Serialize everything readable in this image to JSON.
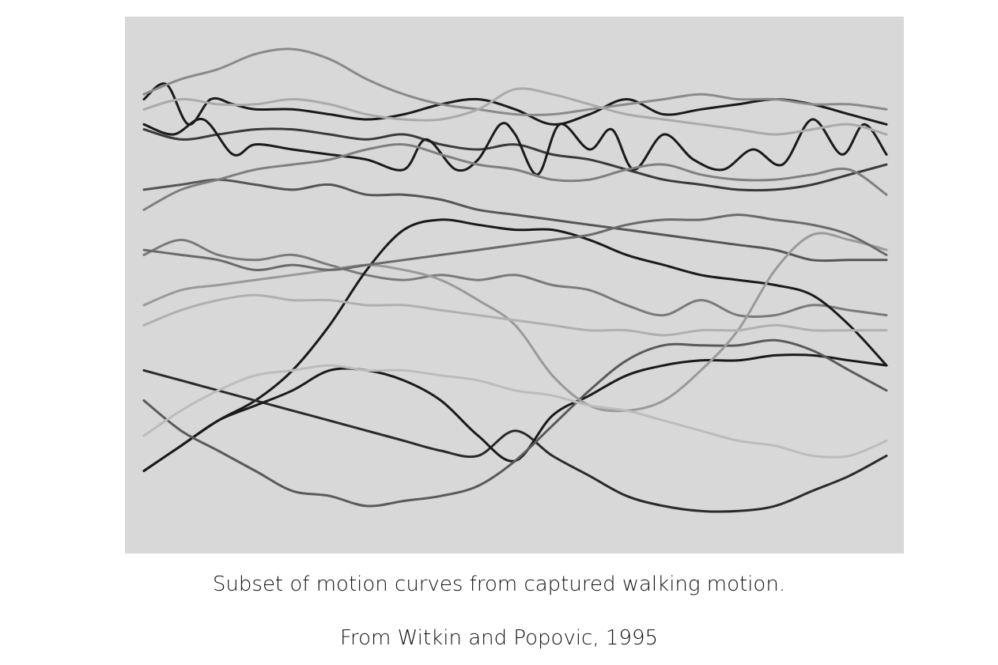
{
  "caption": "Subset of motion curves from captured walking motion.",
  "source": "From Witkin and Popovic, 1995",
  "colors": {
    "background": "#ffffff",
    "plot_background": "#d8d8d8",
    "text": "#111111"
  },
  "chart_data": {
    "type": "line",
    "title": "",
    "xlabel": "",
    "ylabel": "",
    "axes_visible": false,
    "grid": false,
    "legend": "none",
    "xlim": [
      0,
      1
    ],
    "ylim": [
      0,
      1
    ],
    "series": [
      {
        "color": "#1a1a1a",
        "x": [
          0.0,
          0.03,
          0.06,
          0.09,
          0.12,
          0.15,
          0.2,
          0.25,
          0.3,
          0.35,
          0.4,
          0.45,
          0.5,
          0.55,
          0.6,
          0.65,
          0.7,
          0.75,
          0.8,
          0.85,
          0.9,
          0.95,
          1.0
        ],
        "y": [
          0.87,
          0.9,
          0.82,
          0.87,
          0.86,
          0.85,
          0.85,
          0.84,
          0.83,
          0.84,
          0.86,
          0.87,
          0.85,
          0.82,
          0.84,
          0.87,
          0.84,
          0.85,
          0.86,
          0.87,
          0.86,
          0.84,
          0.82
        ]
      },
      {
        "color": "#3a3a3a",
        "x": [
          0.0,
          0.05,
          0.1,
          0.15,
          0.2,
          0.25,
          0.3,
          0.35,
          0.4,
          0.45,
          0.5,
          0.55,
          0.6,
          0.65,
          0.7,
          0.75,
          0.8,
          0.85,
          0.9,
          0.95,
          1.0
        ],
        "y": [
          0.81,
          0.79,
          0.8,
          0.81,
          0.81,
          0.8,
          0.79,
          0.8,
          0.78,
          0.77,
          0.78,
          0.76,
          0.75,
          0.73,
          0.71,
          0.7,
          0.69,
          0.69,
          0.7,
          0.72,
          0.74
        ]
      },
      {
        "color": "#8a8a8a",
        "x": [
          0.0,
          0.05,
          0.1,
          0.15,
          0.2,
          0.25,
          0.3,
          0.35,
          0.4,
          0.45,
          0.5,
          0.55,
          0.6,
          0.65,
          0.7,
          0.75,
          0.8,
          0.85,
          0.9,
          0.95,
          1.0
        ],
        "y": [
          0.88,
          0.91,
          0.93,
          0.96,
          0.97,
          0.95,
          0.91,
          0.88,
          0.86,
          0.85,
          0.84,
          0.84,
          0.85,
          0.86,
          0.87,
          0.88,
          0.87,
          0.87,
          0.86,
          0.86,
          0.85
        ]
      },
      {
        "color": "#1a1a1a",
        "x": [
          0.0,
          0.04,
          0.08,
          0.12,
          0.15,
          0.2,
          0.25,
          0.3,
          0.35,
          0.38,
          0.42,
          0.45,
          0.48,
          0.5,
          0.53,
          0.56,
          0.6,
          0.63,
          0.66,
          0.7,
          0.74,
          0.78,
          0.82,
          0.86,
          0.9,
          0.94,
          0.97,
          1.0
        ],
        "y": [
          0.82,
          0.8,
          0.83,
          0.76,
          0.78,
          0.77,
          0.76,
          0.75,
          0.73,
          0.79,
          0.73,
          0.75,
          0.82,
          0.8,
          0.72,
          0.82,
          0.77,
          0.81,
          0.73,
          0.8,
          0.75,
          0.73,
          0.77,
          0.74,
          0.83,
          0.76,
          0.82,
          0.76
        ]
      },
      {
        "color": "#555555",
        "x": [
          0.0,
          0.05,
          0.1,
          0.15,
          0.2,
          0.25,
          0.3,
          0.35,
          0.4,
          0.45,
          0.5,
          0.55,
          0.6,
          0.65,
          0.7,
          0.75,
          0.8,
          0.85,
          0.9,
          0.95,
          1.0
        ],
        "y": [
          0.69,
          0.7,
          0.71,
          0.7,
          0.69,
          0.7,
          0.68,
          0.68,
          0.67,
          0.65,
          0.64,
          0.63,
          0.62,
          0.61,
          0.6,
          0.59,
          0.58,
          0.57,
          0.55,
          0.55,
          0.55
        ]
      },
      {
        "color": "#7a7a7a",
        "x": [
          0.0,
          0.05,
          0.1,
          0.15,
          0.2,
          0.25,
          0.3,
          0.35,
          0.4,
          0.45,
          0.5,
          0.55,
          0.6,
          0.65,
          0.7,
          0.75,
          0.8,
          0.85,
          0.9,
          0.95,
          1.0
        ],
        "y": [
          0.56,
          0.59,
          0.56,
          0.55,
          0.56,
          0.54,
          0.52,
          0.51,
          0.52,
          0.51,
          0.52,
          0.5,
          0.49,
          0.46,
          0.44,
          0.47,
          0.44,
          0.44,
          0.46,
          0.45,
          0.44
        ]
      },
      {
        "color": "#1a1a1a",
        "x": [
          0.0,
          0.05,
          0.1,
          0.15,
          0.2,
          0.25,
          0.3,
          0.35,
          0.4,
          0.45,
          0.5,
          0.55,
          0.6,
          0.65,
          0.7,
          0.75,
          0.8,
          0.85,
          0.9,
          0.95,
          1.0
        ],
        "y": [
          0.13,
          0.18,
          0.23,
          0.27,
          0.33,
          0.42,
          0.53,
          0.61,
          0.63,
          0.62,
          0.61,
          0.61,
          0.59,
          0.56,
          0.54,
          0.52,
          0.51,
          0.5,
          0.48,
          0.42,
          0.34
        ]
      },
      {
        "color": "#2a2a2a",
        "x": [
          0.0,
          0.05,
          0.1,
          0.15,
          0.2,
          0.25,
          0.3,
          0.35,
          0.4,
          0.45,
          0.5,
          0.55,
          0.6,
          0.65,
          0.7,
          0.75,
          0.8,
          0.85,
          0.9,
          0.95,
          1.0
        ],
        "y": [
          0.33,
          0.31,
          0.29,
          0.27,
          0.25,
          0.23,
          0.21,
          0.19,
          0.17,
          0.16,
          0.21,
          0.16,
          0.12,
          0.08,
          0.06,
          0.05,
          0.05,
          0.06,
          0.09,
          0.12,
          0.16
        ]
      },
      {
        "color": "#1a1a1a",
        "x": [
          0.0,
          0.05,
          0.1,
          0.15,
          0.2,
          0.25,
          0.3,
          0.35,
          0.4,
          0.45,
          0.5,
          0.55,
          0.6,
          0.65,
          0.7,
          0.75,
          0.8,
          0.85,
          0.9,
          0.95,
          1.0
        ],
        "y": [
          0.13,
          0.18,
          0.23,
          0.26,
          0.29,
          0.33,
          0.33,
          0.31,
          0.27,
          0.2,
          0.15,
          0.24,
          0.28,
          0.32,
          0.34,
          0.35,
          0.35,
          0.36,
          0.36,
          0.35,
          0.34
        ]
      },
      {
        "color": "#5a5a5a",
        "x": [
          0.0,
          0.05,
          0.1,
          0.15,
          0.2,
          0.25,
          0.3,
          0.35,
          0.4,
          0.45,
          0.5,
          0.55,
          0.6,
          0.65,
          0.7,
          0.75,
          0.8,
          0.85,
          0.9,
          0.95,
          1.0
        ],
        "y": [
          0.27,
          0.21,
          0.17,
          0.13,
          0.09,
          0.08,
          0.06,
          0.07,
          0.08,
          0.1,
          0.15,
          0.22,
          0.29,
          0.35,
          0.38,
          0.38,
          0.38,
          0.39,
          0.37,
          0.33,
          0.29
        ]
      },
      {
        "color": "#9a9a9a",
        "x": [
          0.0,
          0.05,
          0.1,
          0.15,
          0.2,
          0.25,
          0.3,
          0.35,
          0.4,
          0.45,
          0.5,
          0.55,
          0.6,
          0.65,
          0.7,
          0.75,
          0.8,
          0.85,
          0.9,
          0.95,
          1.0
        ],
        "y": [
          0.46,
          0.49,
          0.5,
          0.51,
          0.52,
          0.53,
          0.54,
          0.53,
          0.51,
          0.47,
          0.42,
          0.32,
          0.26,
          0.25,
          0.27,
          0.33,
          0.41,
          0.53,
          0.6,
          0.59,
          0.57
        ]
      },
      {
        "color": "#bcbcbc",
        "x": [
          0.0,
          0.05,
          0.1,
          0.15,
          0.2,
          0.25,
          0.3,
          0.35,
          0.4,
          0.45,
          0.5,
          0.55,
          0.6,
          0.65,
          0.7,
          0.75,
          0.8,
          0.85,
          0.9,
          0.95,
          1.0
        ],
        "y": [
          0.2,
          0.25,
          0.29,
          0.32,
          0.33,
          0.34,
          0.33,
          0.33,
          0.32,
          0.31,
          0.29,
          0.28,
          0.26,
          0.25,
          0.23,
          0.21,
          0.19,
          0.18,
          0.16,
          0.16,
          0.19
        ]
      },
      {
        "color": "#aaaaaa",
        "x": [
          0.0,
          0.05,
          0.1,
          0.15,
          0.2,
          0.25,
          0.3,
          0.35,
          0.4,
          0.45,
          0.5,
          0.55,
          0.6,
          0.65,
          0.7,
          0.75,
          0.8,
          0.85,
          0.9,
          0.95,
          1.0
        ],
        "y": [
          0.85,
          0.87,
          0.86,
          0.86,
          0.87,
          0.86,
          0.84,
          0.83,
          0.83,
          0.85,
          0.89,
          0.88,
          0.86,
          0.84,
          0.83,
          0.82,
          0.81,
          0.8,
          0.81,
          0.82,
          0.8
        ]
      },
      {
        "color": "#7f7f7f",
        "x": [
          0.0,
          0.05,
          0.1,
          0.15,
          0.2,
          0.25,
          0.3,
          0.35,
          0.4,
          0.45,
          0.5,
          0.55,
          0.6,
          0.65,
          0.7,
          0.75,
          0.8,
          0.85,
          0.9,
          0.95,
          1.0
        ],
        "y": [
          0.65,
          0.69,
          0.71,
          0.73,
          0.74,
          0.75,
          0.77,
          0.78,
          0.76,
          0.74,
          0.73,
          0.71,
          0.71,
          0.73,
          0.74,
          0.72,
          0.71,
          0.71,
          0.72,
          0.73,
          0.68
        ]
      },
      {
        "color": "#6a6a6a",
        "x": [
          0.0,
          0.05,
          0.1,
          0.15,
          0.2,
          0.25,
          0.3,
          0.35,
          0.4,
          0.45,
          0.5,
          0.55,
          0.6,
          0.65,
          0.7,
          0.75,
          0.8,
          0.85,
          0.9,
          0.95,
          1.0
        ],
        "y": [
          0.57,
          0.56,
          0.55,
          0.53,
          0.54,
          0.53,
          0.54,
          0.55,
          0.56,
          0.57,
          0.58,
          0.59,
          0.6,
          0.62,
          0.63,
          0.63,
          0.64,
          0.63,
          0.62,
          0.6,
          0.56
        ]
      },
      {
        "color": "#b0b0b0",
        "x": [
          0.0,
          0.05,
          0.1,
          0.15,
          0.2,
          0.25,
          0.3,
          0.35,
          0.4,
          0.45,
          0.5,
          0.55,
          0.6,
          0.65,
          0.7,
          0.75,
          0.8,
          0.85,
          0.9,
          0.95,
          1.0
        ],
        "y": [
          0.42,
          0.45,
          0.47,
          0.48,
          0.47,
          0.47,
          0.46,
          0.46,
          0.45,
          0.44,
          0.43,
          0.42,
          0.41,
          0.41,
          0.4,
          0.41,
          0.41,
          0.42,
          0.41,
          0.41,
          0.41
        ]
      }
    ]
  }
}
